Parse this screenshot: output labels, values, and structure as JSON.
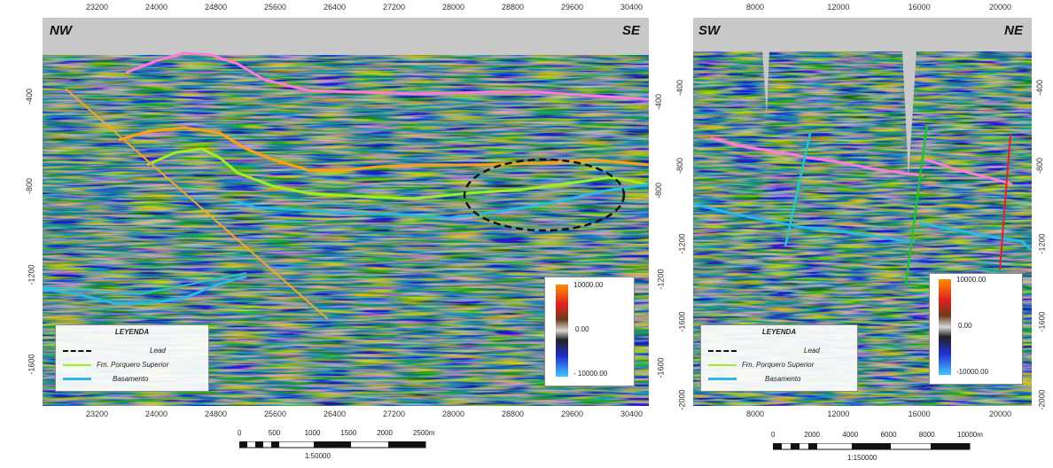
{
  "left_panel": {
    "dir_left": "NW",
    "dir_right": "SE",
    "x_ticks": [
      "23200",
      "24000",
      "24800",
      "25600",
      "26400",
      "27200",
      "28000",
      "28800",
      "29600",
      "30400"
    ],
    "y_ticks_left": [
      "-400",
      "-800",
      "-1200",
      "-1600"
    ],
    "y_ticks_right": [
      "-400",
      "-800",
      "-1200",
      "-1600"
    ],
    "legend": {
      "title": "LEYENDA",
      "items": [
        "Lead",
        "Fm. Porquero Superior",
        "Basamento"
      ]
    },
    "colorbar": {
      "max": "10000.00",
      "mid": "0.00",
      "min": "- 10000.00"
    },
    "scale": {
      "labels": [
        "0",
        "500",
        "1000",
        "1500",
        "2000",
        "2500m"
      ],
      "ratio": "1:50000"
    }
  },
  "right_panel": {
    "dir_left": "SW",
    "dir_right": "NE",
    "x_ticks": [
      "8000",
      "12000",
      "16000",
      "20000"
    ],
    "y_ticks_left": [
      "-400",
      "-800",
      "-1200",
      "-1600",
      "-2000"
    ],
    "y_ticks_right": [
      "-400",
      "-800",
      "-1200",
      "-1600",
      "-2000"
    ],
    "legend": {
      "title": "LEYENDA",
      "items": [
        "Lead",
        "Fm. Porquero Superior",
        "Basamento"
      ]
    },
    "colorbar": {
      "max": "10000.00",
      "mid": "0.00",
      "min": "-10000.00"
    },
    "scale": {
      "labels": [
        "0",
        "2000",
        "4000",
        "6000",
        "8000",
        "10000m"
      ],
      "ratio": "1:150000"
    }
  },
  "colors": {
    "horizon_pink": "#ff7ad9",
    "horizon_orange": "#ffa010",
    "horizon_green": "#9cf020",
    "horizon_cyan": "#2ab8e8",
    "fault_orange": "#f5a623",
    "fault_cyan": "#26c6c6",
    "fault_green": "#20c030",
    "fault_red": "#e82020",
    "lead_dashed": "#111111"
  }
}
